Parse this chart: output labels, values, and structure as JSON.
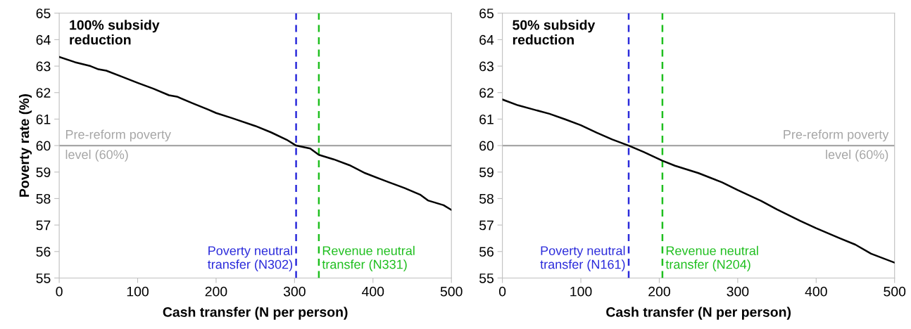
{
  "chart_data": [
    {
      "type": "line",
      "title": "100% subsidy\nreduction",
      "xlabel": "Cash transfer (N per person)",
      "ylabel": "Poverty rate (%)",
      "series": [
        {
          "color": "#000000",
          "x": [
            0,
            20,
            40,
            50,
            60,
            80,
            100,
            120,
            140,
            150,
            170,
            190,
            200,
            220,
            250,
            270,
            290,
            302,
            320,
            331,
            350,
            370,
            390,
            410,
            420,
            440,
            460,
            470,
            490,
            500
          ],
          "values": [
            63.35,
            63.15,
            63.0,
            62.88,
            62.83,
            62.6,
            62.37,
            62.15,
            61.9,
            61.85,
            61.6,
            61.36,
            61.23,
            61.04,
            60.74,
            60.5,
            60.22,
            60.0,
            59.89,
            59.65,
            59.48,
            59.26,
            58.96,
            58.73,
            58.62,
            58.4,
            58.15,
            57.93,
            57.75,
            57.57
          ]
        }
      ],
      "xlim": [
        0,
        500
      ],
      "xticks": [
        0,
        100,
        200,
        300,
        400,
        500
      ],
      "ylim": [
        55,
        65
      ],
      "yticks": [
        55,
        56,
        57,
        58,
        59,
        60,
        61,
        62,
        63,
        64,
        65
      ],
      "ref_lines": [
        {
          "axis": "y",
          "value": 60,
          "label": "Pre-reform poverty\nlevel (60%)",
          "color": "#a6a6a6",
          "line_style": "solid"
        },
        {
          "axis": "x",
          "value": 302,
          "label": "Poverty neutral\ntransfer (N302)",
          "color": "#2b2bdb",
          "line_style": "dashed"
        },
        {
          "axis": "x",
          "value": 331,
          "label": "Revenue neutral\ntransfer (N331)",
          "color": "#1fbf1f",
          "line_style": "dashed"
        }
      ],
      "grid": false,
      "legend": false,
      "line_style": "solid",
      "marker": "none"
    },
    {
      "type": "line",
      "title": "50% subsidy\nreduction",
      "xlabel": "Cash transfer (N per person)",
      "series": [
        {
          "color": "#000000",
          "x": [
            0,
            20,
            40,
            60,
            80,
            100,
            120,
            140,
            161,
            180,
            204,
            220,
            250,
            280,
            300,
            330,
            350,
            380,
            400,
            430,
            450,
            470,
            500
          ],
          "values": [
            61.74,
            61.52,
            61.36,
            61.2,
            60.99,
            60.77,
            60.49,
            60.23,
            60.0,
            59.76,
            59.43,
            59.24,
            58.96,
            58.61,
            58.32,
            57.91,
            57.59,
            57.15,
            56.88,
            56.5,
            56.26,
            55.92,
            55.58
          ]
        }
      ],
      "xlim": [
        0,
        500
      ],
      "xticks": [
        0,
        100,
        200,
        300,
        400,
        500
      ],
      "ylim": [
        55,
        65
      ],
      "yticks": [
        55,
        56,
        57,
        58,
        59,
        60,
        61,
        62,
        63,
        64,
        65
      ],
      "ref_lines": [
        {
          "axis": "y",
          "value": 60,
          "label": "Pre-reform poverty\nlevel (60%)",
          "color": "#a6a6a6",
          "line_style": "solid"
        },
        {
          "axis": "x",
          "value": 161,
          "label": "Poverty neutral\ntransfer (N161)",
          "color": "#2b2bdb",
          "line_style": "dashed"
        },
        {
          "axis": "x",
          "value": 204,
          "label": "Revenue neutral\ntransfer (N204)",
          "color": "#1fbf1f",
          "line_style": "dashed"
        }
      ],
      "grid": false,
      "legend": false,
      "line_style": "solid",
      "marker": "none"
    }
  ]
}
